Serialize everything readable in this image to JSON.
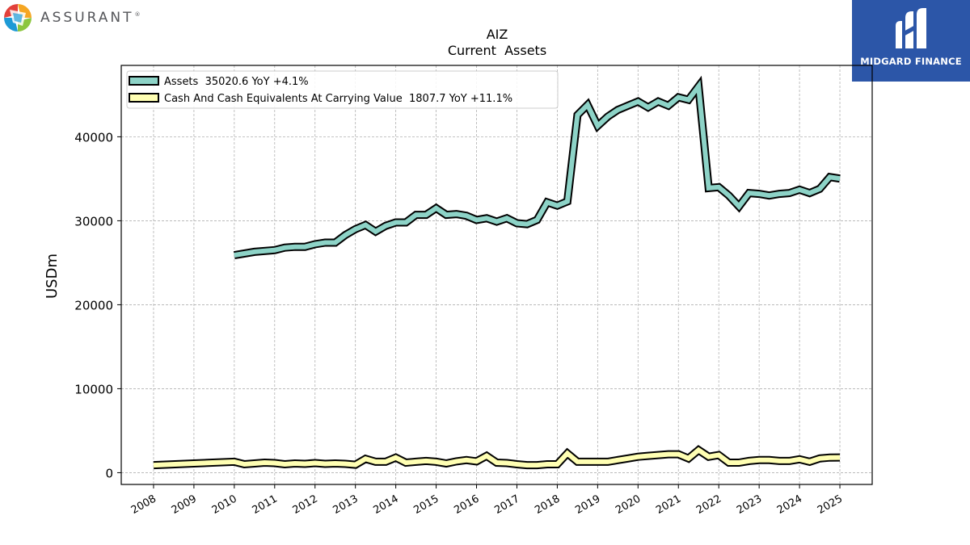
{
  "brand": {
    "left_name": "ASSURANT",
    "left_mark": "®",
    "right_name": "MIDGARD FINANCE"
  },
  "icons": {
    "left_logo": "assurant-pinwheel-icon",
    "right_logo": "midgard-m-icon"
  },
  "colors": {
    "assets": "#8dd3c7",
    "cash": "#ffffb3",
    "outline": "#000000",
    "grid": "#b0b0b0",
    "brand_blue": "#2c56a8"
  },
  "chart_data": {
    "type": "line",
    "title": "AIZ",
    "subtitle": "Current  Assets",
    "ylabel": "USDm",
    "xlabel": "",
    "xlim": [
      2007.2,
      2025.8
    ],
    "ylim": [
      -1400,
      48500
    ],
    "yticks": [
      0,
      10000,
      20000,
      30000,
      40000
    ],
    "ytick_labels": [
      "0",
      "10000",
      "20000",
      "30000",
      "40000"
    ],
    "xtick_labels": [
      "2008",
      "2009",
      "2010",
      "2011",
      "2012",
      "2013",
      "2014",
      "2015",
      "2016",
      "2017",
      "2018",
      "2019",
      "2020",
      "2021",
      "2022",
      "2023",
      "2024",
      "2025"
    ],
    "grid": true,
    "legend_placement": "top-left",
    "series": [
      {
        "name": "Assets  35020.6 YoY +4.1%",
        "x": [
          2010.0,
          2010.5,
          2011.0,
          2011.25,
          2011.5,
          2011.75,
          2012.0,
          2012.25,
          2012.5,
          2012.75,
          2013.0,
          2013.25,
          2013.5,
          2013.75,
          2014.0,
          2014.25,
          2014.5,
          2014.75,
          2015.0,
          2015.25,
          2015.5,
          2015.75,
          2016.0,
          2016.25,
          2016.5,
          2016.75,
          2017.0,
          2017.25,
          2017.5,
          2017.75,
          2018.0,
          2018.25,
          2018.5,
          2018.75,
          2019.0,
          2019.25,
          2019.5,
          2019.75,
          2020.0,
          2020.25,
          2020.5,
          2020.75,
          2021.0,
          2021.25,
          2021.5,
          2021.75,
          2022.0,
          2022.25,
          2022.5,
          2022.75,
          2023.0,
          2023.25,
          2023.5,
          2023.75,
          2024.0,
          2024.25,
          2024.5,
          2024.75,
          2025.0
        ],
        "values": [
          25900,
          26300,
          26500,
          26800,
          26900,
          26900,
          27200,
          27400,
          27400,
          28300,
          29000,
          29500,
          28700,
          29400,
          29800,
          29800,
          30700,
          30700,
          31500,
          30700,
          30800,
          30600,
          30100,
          30300,
          29900,
          30300,
          29700,
          29600,
          30100,
          32200,
          31800,
          32300,
          42600,
          43800,
          41300,
          42400,
          43200,
          43700,
          44200,
          43500,
          44200,
          43700,
          44700,
          44400,
          46000,
          33900,
          34000,
          33000,
          31700,
          33300,
          33200,
          33000,
          33200,
          33300,
          33700,
          33300,
          33800,
          35200,
          35020.6
        ]
      },
      {
        "name": "Cash And Cash Equivalents At Carrying Value  1807.7 YoY +11.1%",
        "x": [
          2008.0,
          2009.0,
          2010.0,
          2010.25,
          2010.5,
          2010.75,
          2011.0,
          2011.25,
          2011.5,
          2011.75,
          2012.0,
          2012.25,
          2012.5,
          2012.75,
          2013.0,
          2013.25,
          2013.5,
          2013.75,
          2014.0,
          2014.25,
          2014.5,
          2014.75,
          2015.0,
          2015.25,
          2015.5,
          2015.75,
          2016.0,
          2016.25,
          2016.5,
          2016.75,
          2017.0,
          2017.25,
          2017.5,
          2017.75,
          2018.0,
          2018.25,
          2018.5,
          2018.75,
          2019.0,
          2019.25,
          2019.5,
          2019.75,
          2020.0,
          2020.25,
          2020.5,
          2020.75,
          2021.0,
          2021.25,
          2021.5,
          2021.75,
          2022.0,
          2022.25,
          2022.5,
          2022.75,
          2023.0,
          2023.25,
          2023.5,
          2023.75,
          2024.0,
          2024.25,
          2024.5,
          2024.75,
          2025.0
        ],
        "values": [
          900,
          1100,
          1300,
          1000,
          1100,
          1200,
          1150,
          1000,
          1100,
          1050,
          1150,
          1050,
          1100,
          1050,
          950,
          1650,
          1300,
          1300,
          1800,
          1200,
          1300,
          1400,
          1300,
          1100,
          1350,
          1500,
          1350,
          2000,
          1200,
          1150,
          1000,
          900,
          900,
          1000,
          1000,
          2300,
          1300,
          1300,
          1300,
          1300,
          1500,
          1700,
          1900,
          2000,
          2100,
          2200,
          2200,
          1700,
          2700,
          1900,
          2100,
          1200,
          1200,
          1400,
          1500,
          1500,
          1400,
          1400,
          1600,
          1300,
          1700,
          1800,
          1807.7
        ]
      }
    ]
  }
}
